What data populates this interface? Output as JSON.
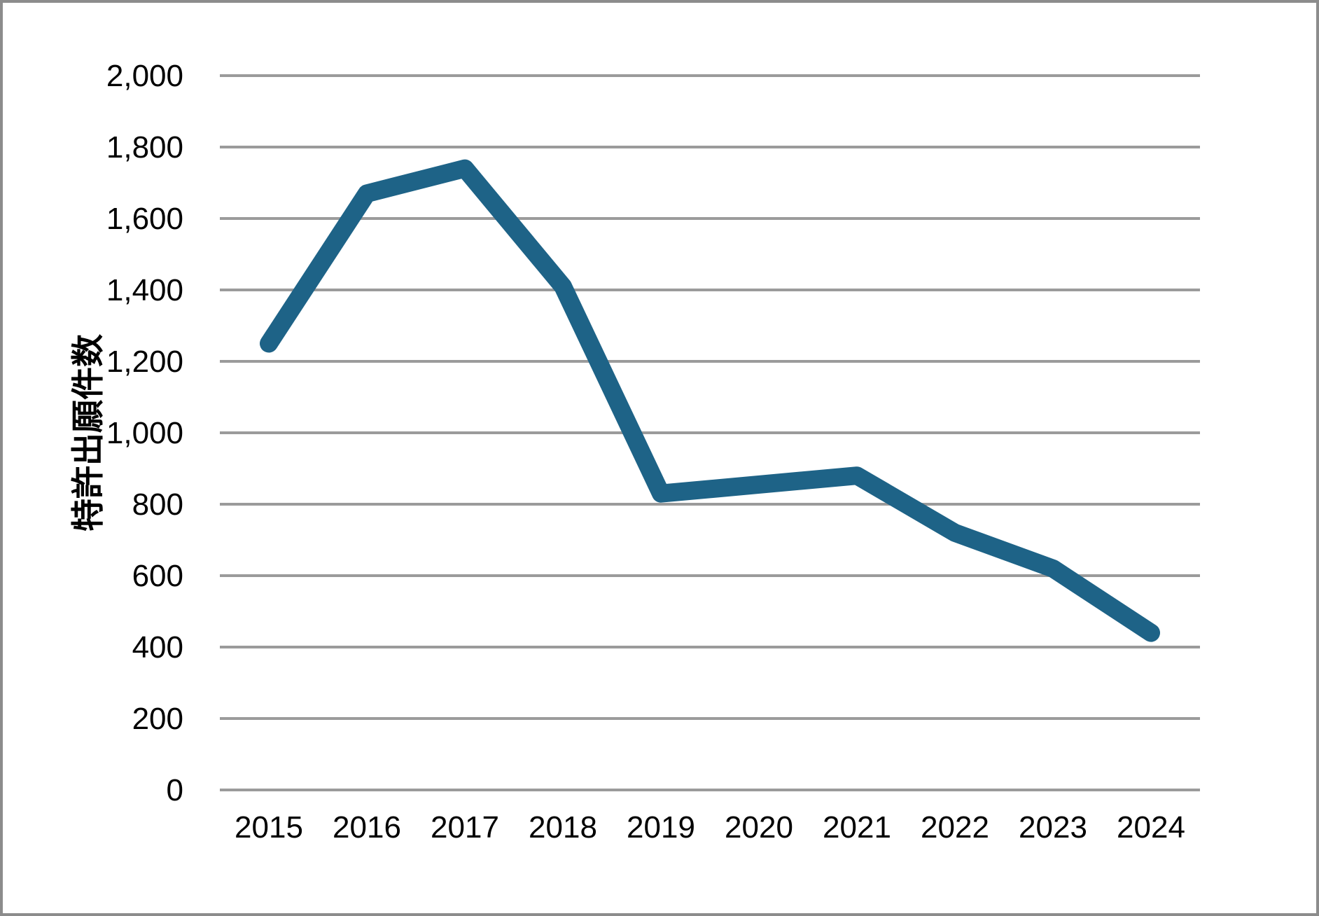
{
  "chart_data": {
    "type": "line",
    "title": "",
    "xlabel": "",
    "ylabel": "特許出願件数",
    "categories": [
      "2015",
      "2016",
      "2017",
      "2018",
      "2019",
      "2020",
      "2021",
      "2022",
      "2023",
      "2024"
    ],
    "series": [
      {
        "name": "特許出願件数",
        "values": [
          1250,
          1670,
          1740,
          1410,
          830,
          855,
          880,
          720,
          620,
          440
        ]
      }
    ],
    "ylim": [
      0,
      2000
    ],
    "ytick_step": 200,
    "ytick_labels": [
      "0",
      "200",
      "400",
      "600",
      "800",
      "1,000",
      "1,200",
      "1,400",
      "1,600",
      "1,800",
      "2,000"
    ],
    "grid": "horizontal",
    "legend_position": "none",
    "colors": {
      "line": "#1e6387",
      "gridline": "#9b9b9b",
      "frame_border": "#8c8c8c",
      "text": "#000000",
      "background": "#ffffff"
    }
  }
}
